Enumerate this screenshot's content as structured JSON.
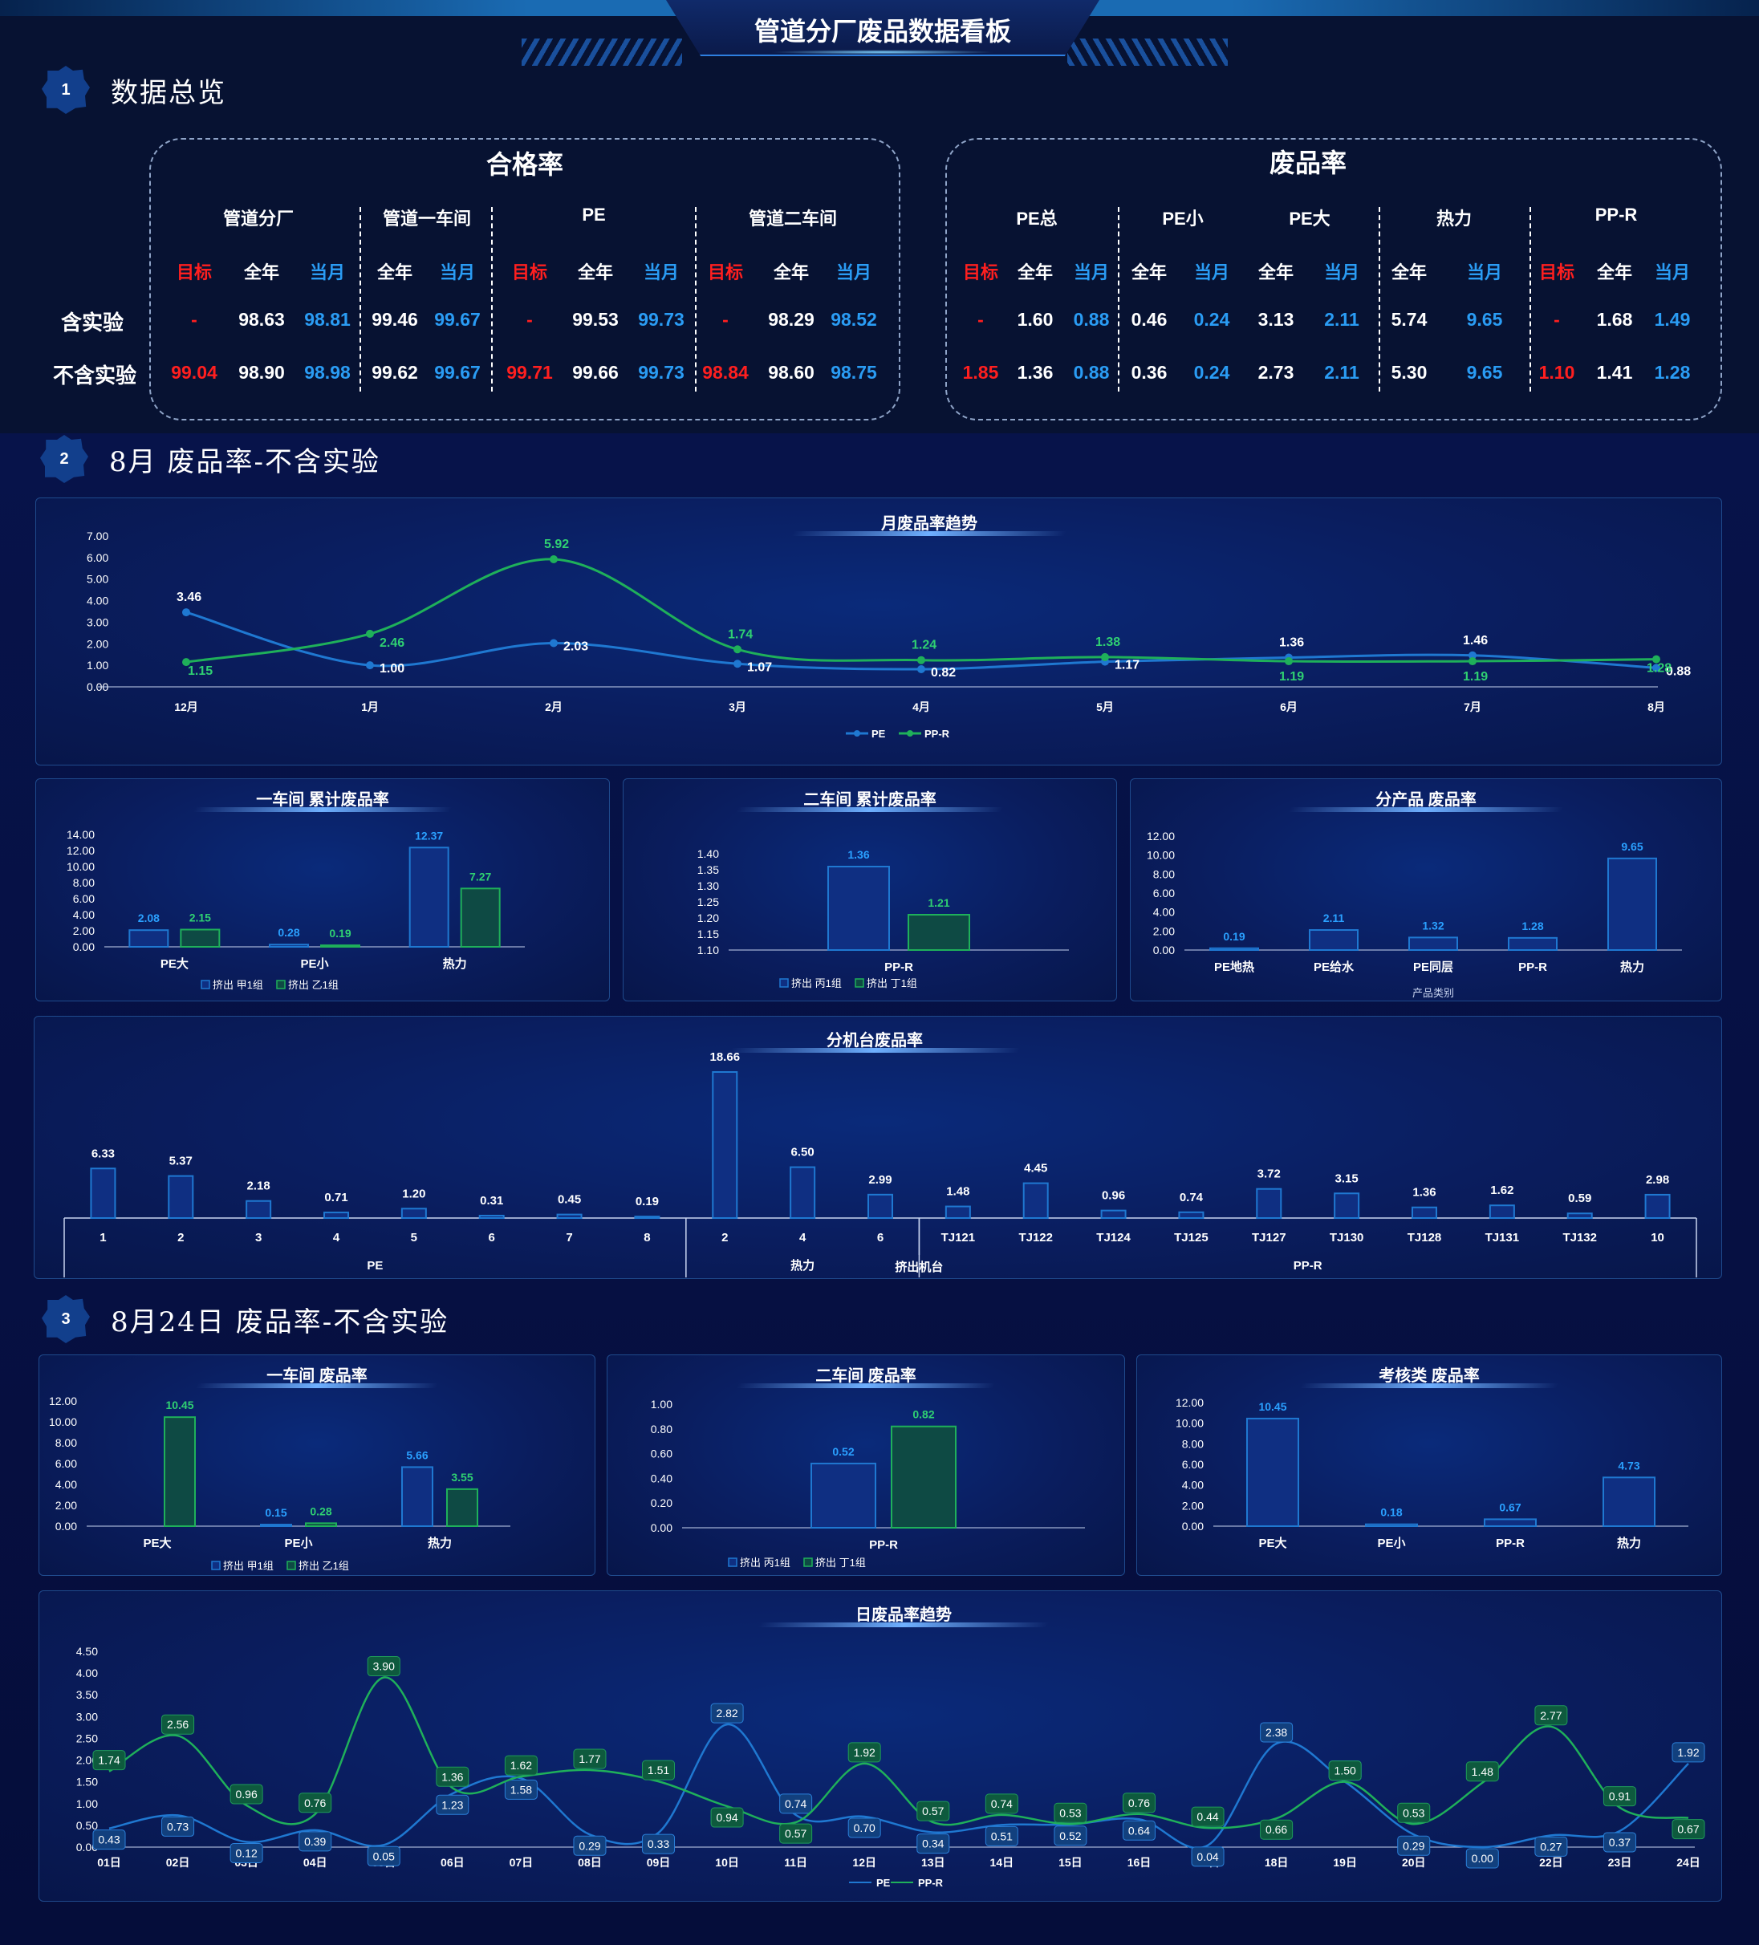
{
  "header": {
    "title": "管道分厂废品数据看板"
  },
  "sections": {
    "s1": {
      "num": "1",
      "label": "数据总览"
    },
    "s2": {
      "num": "2",
      "label": "8月 废品率-不含实验"
    },
    "s3": {
      "num": "3",
      "label": "8月24日 废品率-不含实验"
    }
  },
  "overview": {
    "pass_title": "合格率",
    "scrap_title": "废品率",
    "row_labels": [
      "含实验",
      "不含实验"
    ],
    "col_target": "目标",
    "col_year": "全年",
    "col_month": "当月",
    "pass_groups": [
      {
        "name": "管道分厂",
        "cols": [
          "目标",
          "全年",
          "当月"
        ],
        "rows": [
          [
            "-",
            "98.63",
            "98.81"
          ],
          [
            "99.04",
            "98.90",
            "98.98"
          ]
        ]
      },
      {
        "name": "管道一车间",
        "cols": [
          "全年",
          "当月"
        ],
        "rows": [
          [
            "99.46",
            "99.67"
          ],
          [
            "99.62",
            "99.67"
          ]
        ]
      },
      {
        "name": "PE",
        "cols": [
          "目标",
          "全年",
          "当月"
        ],
        "rows": [
          [
            "-",
            "99.53",
            "99.73"
          ],
          [
            "99.71",
            "99.66",
            "99.73"
          ]
        ]
      },
      {
        "name": "管道二车间",
        "cols": [
          "目标",
          "全年",
          "当月"
        ],
        "rows": [
          [
            "-",
            "98.29",
            "98.52"
          ],
          [
            "98.84",
            "98.60",
            "98.75"
          ]
        ]
      }
    ],
    "scrap_groups": [
      {
        "name": "PE总",
        "cols": [
          "目标",
          "全年",
          "当月"
        ],
        "rows": [
          [
            "-",
            "1.60",
            "0.88"
          ],
          [
            "1.85",
            "1.36",
            "0.88"
          ]
        ]
      },
      {
        "name": "PE小",
        "cols": [
          "全年",
          "当月"
        ],
        "rows": [
          [
            "0.46",
            "0.24"
          ],
          [
            "0.36",
            "0.24"
          ]
        ]
      },
      {
        "name": "PE大",
        "cols": [
          "全年",
          "当月"
        ],
        "rows": [
          [
            "3.13",
            "2.11"
          ],
          [
            "2.73",
            "2.11"
          ]
        ]
      },
      {
        "name": "热力",
        "cols": [
          "全年",
          "当月"
        ],
        "rows": [
          [
            "5.74",
            "9.65"
          ],
          [
            "5.30",
            "9.65"
          ]
        ]
      },
      {
        "name": "PP-R",
        "cols": [
          "目标",
          "全年",
          "当月"
        ],
        "rows": [
          [
            "-",
            "1.68",
            "1.49"
          ],
          [
            "1.10",
            "1.41",
            "1.28"
          ]
        ]
      }
    ]
  },
  "colors": {
    "pe": "#1f78d1",
    "ppr": "#1fb05a",
    "red": "#ff1f1f",
    "blue": "#2a9cf4"
  },
  "chart_data": [
    {
      "id": "monthly",
      "type": "line",
      "title": "月废品率趋势",
      "categories": [
        "12月",
        "1月",
        "2月",
        "3月",
        "4月",
        "5月",
        "6月",
        "7月",
        "8月"
      ],
      "ylim": [
        0,
        7
      ],
      "yticks": [
        "0.00",
        "1.00",
        "2.00",
        "3.00",
        "4.00",
        "5.00",
        "6.00",
        "7.00"
      ],
      "series": [
        {
          "name": "PE",
          "values": [
            3.46,
            1.0,
            2.03,
            1.07,
            0.82,
            1.17,
            1.36,
            1.46,
            0.88
          ]
        },
        {
          "name": "PP-R",
          "values": [
            1.15,
            2.46,
            5.92,
            1.74,
            1.24,
            1.38,
            1.19,
            1.19,
            1.28
          ]
        }
      ]
    },
    {
      "id": "ws1",
      "type": "bar",
      "title": "一车间 累计废品率",
      "categories": [
        "PE大",
        "PE小",
        "热力"
      ],
      "ylim": [
        0,
        14
      ],
      "yticks": [
        "0.00",
        "2.00",
        "4.00",
        "6.00",
        "8.00",
        "10.00",
        "12.00",
        "14.00"
      ],
      "series": [
        {
          "name": "挤出 甲1组",
          "values": [
            2.08,
            0.28,
            12.37
          ]
        },
        {
          "name": "挤出 乙1组",
          "values": [
            2.15,
            0.19,
            7.27
          ]
        }
      ]
    },
    {
      "id": "ws2",
      "type": "bar",
      "title": "二车间 累计废品率",
      "categories": [
        "PP-R"
      ],
      "ylim": [
        1.1,
        1.4
      ],
      "yticks": [
        "1.10",
        "1.15",
        "1.20",
        "1.25",
        "1.30",
        "1.35",
        "1.40"
      ],
      "series": [
        {
          "name": "挤出 丙1组",
          "values": [
            1.36
          ]
        },
        {
          "name": "挤出 丁1组",
          "values": [
            1.21
          ]
        }
      ]
    },
    {
      "id": "prod",
      "type": "bar",
      "title": "分产品 废品率",
      "xlabel": "产品类别",
      "categories": [
        "PE地热",
        "PE给水",
        "PE同层",
        "PP-R",
        "热力"
      ],
      "ylim": [
        0,
        12
      ],
      "yticks": [
        "0.00",
        "2.00",
        "4.00",
        "6.00",
        "8.00",
        "10.00",
        "12.00"
      ],
      "series": [
        {
          "values": [
            0.19,
            2.11,
            1.32,
            1.28,
            9.65
          ]
        }
      ]
    },
    {
      "id": "machine",
      "type": "bar",
      "title": "分机台废品率",
      "xlabel": "挤出机台",
      "categories": [
        "1",
        "2",
        "3",
        "4",
        "5",
        "6",
        "7",
        "8",
        "2",
        "4",
        "6",
        "TJ121",
        "TJ122",
        "TJ124",
        "TJ125",
        "TJ127",
        "TJ130",
        "TJ128",
        "TJ131",
        "TJ132",
        "10"
      ],
      "groups": [
        {
          "name": "PE",
          "count": 8
        },
        {
          "name": "热力",
          "count": 3
        },
        {
          "name": "PP-R",
          "count": 10
        }
      ],
      "ylim": [
        0,
        18.66
      ],
      "series": [
        {
          "values": [
            6.33,
            5.37,
            2.18,
            0.71,
            1.2,
            0.31,
            0.45,
            0.19,
            18.66,
            6.5,
            2.99,
            1.48,
            4.45,
            0.96,
            0.74,
            3.72,
            3.15,
            1.36,
            1.62,
            0.59,
            2.98
          ]
        }
      ]
    },
    {
      "id": "d1",
      "type": "bar",
      "title": "一车间 废品率",
      "categories": [
        "PE大",
        "PE小",
        "热力"
      ],
      "ylim": [
        0,
        12
      ],
      "yticks": [
        "0.00",
        "2.00",
        "4.00",
        "6.00",
        "8.00",
        "10.00",
        "12.00"
      ],
      "series": [
        {
          "name": "挤出 甲1组",
          "values": [
            null,
            0.15,
            5.66
          ]
        },
        {
          "name": "挤出 乙1组",
          "values": [
            10.45,
            0.28,
            3.55
          ]
        }
      ]
    },
    {
      "id": "d2",
      "type": "bar",
      "title": "二车间 废品率",
      "categories": [
        "PP-R"
      ],
      "ylim": [
        0,
        1
      ],
      "yticks": [
        "0.00",
        "0.20",
        "0.40",
        "0.60",
        "0.80",
        "1.00"
      ],
      "series": [
        {
          "name": "挤出 丙1组",
          "values": [
            0.52
          ]
        },
        {
          "name": "挤出 丁1组",
          "values": [
            0.82
          ]
        }
      ]
    },
    {
      "id": "d3",
      "type": "bar",
      "title": "考核类 废品率",
      "categories": [
        "PE大",
        "PE小",
        "PP-R",
        "热力"
      ],
      "ylim": [
        0,
        12
      ],
      "yticks": [
        "0.00",
        "2.00",
        "4.00",
        "6.00",
        "8.00",
        "10.00",
        "12.00"
      ],
      "series": [
        {
          "values": [
            10.45,
            0.18,
            0.67,
            4.73
          ]
        }
      ]
    },
    {
      "id": "daily",
      "type": "line",
      "title": "日废品率趋势",
      "categories": [
        "01日",
        "02日",
        "03日",
        "04日",
        "05日",
        "06日",
        "07日",
        "08日",
        "09日",
        "10日",
        "11日",
        "12日",
        "13日",
        "14日",
        "15日",
        "16日",
        "17日",
        "18日",
        "19日",
        "20日",
        "21日",
        "22日",
        "23日",
        "24日"
      ],
      "ylim": [
        0,
        4.5
      ],
      "yticks": [
        "0.00",
        "0.50",
        "1.00",
        "1.50",
        "2.00",
        "2.50",
        "3.00",
        "3.50",
        "4.00",
        "4.50"
      ],
      "series": [
        {
          "name": "PE",
          "values": [
            0.43,
            0.73,
            0.12,
            0.39,
            0.05,
            1.23,
            1.58,
            0.29,
            0.33,
            2.82,
            0.74,
            0.7,
            0.34,
            0.51,
            0.52,
            0.64,
            0.04,
            2.38,
            1.5,
            0.29,
            0.0,
            0.27,
            0.37,
            1.92
          ]
        },
        {
          "name": "PP-R",
          "values": [
            1.74,
            2.56,
            0.96,
            0.76,
            3.9,
            1.36,
            1.62,
            1.77,
            1.51,
            0.94,
            0.57,
            1.92,
            0.57,
            0.74,
            0.53,
            0.76,
            0.44,
            0.66,
            1.5,
            0.53,
            1.48,
            2.77,
            0.91,
            0.67
          ]
        }
      ]
    }
  ]
}
